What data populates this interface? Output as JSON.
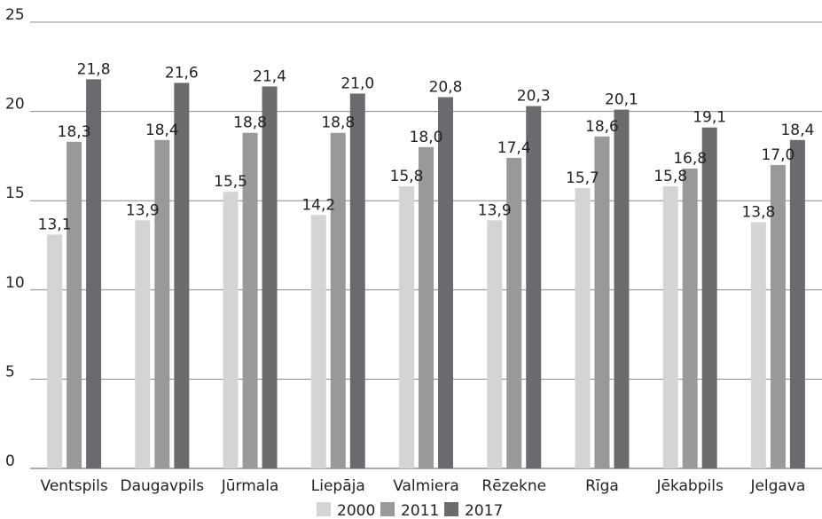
{
  "chart_data": {
    "type": "bar",
    "categories": [
      "Ventspils",
      "Daugavpils",
      "Jūrmala",
      "Liepāja",
      "Valmiera",
      "Rēzekne",
      "Rīga",
      "Jēkabpils",
      "Jelgava"
    ],
    "series": [
      {
        "name": "2000",
        "color": "#d4d4d4",
        "values": [
          13.1,
          13.9,
          15.5,
          14.2,
          15.8,
          13.9,
          15.7,
          15.8,
          13.8
        ],
        "labels": [
          "13,1",
          "13,9",
          "15,5",
          "14,2",
          "15,8",
          "13,9",
          "15,7",
          "15,8",
          "13,8"
        ]
      },
      {
        "name": "2011",
        "color": "#99999b",
        "values": [
          18.3,
          18.4,
          18.8,
          18.8,
          18.0,
          17.4,
          18.6,
          16.8,
          17.0
        ],
        "labels": [
          "18,3",
          "18,4",
          "18,8",
          "18,8",
          "18,0",
          "17,4",
          "18,6",
          "16,8",
          "17,0"
        ]
      },
      {
        "name": "2017",
        "color": "#6b6b6f",
        "values": [
          21.8,
          21.6,
          21.4,
          21.0,
          20.8,
          20.3,
          20.1,
          19.1,
          18.4
        ],
        "labels": [
          "21,8",
          "21,6",
          "21,4",
          "21,0",
          "20,8",
          "20,3",
          "20,1",
          "19,1",
          "18,4"
        ]
      }
    ],
    "yticks": [
      {
        "value": 0,
        "label": "0"
      },
      {
        "value": 5,
        "label": "5"
      },
      {
        "value": 10,
        "label": "10"
      },
      {
        "value": 15,
        "label": "15"
      },
      {
        "value": 20,
        "label": "20"
      },
      {
        "value": 25,
        "label": "25"
      }
    ],
    "ylim": [
      0,
      25
    ],
    "grid": true,
    "legend_position": "bottom-center"
  }
}
